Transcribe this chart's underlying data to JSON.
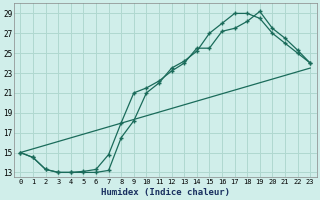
{
  "title": "",
  "xlabel": "Humidex (Indice chaleur)",
  "xlim": [
    -0.5,
    23.5
  ],
  "ylim": [
    12.5,
    30.0
  ],
  "xticks": [
    0,
    1,
    2,
    3,
    4,
    5,
    6,
    7,
    8,
    9,
    10,
    11,
    12,
    13,
    14,
    15,
    16,
    17,
    18,
    19,
    20,
    21,
    22,
    23
  ],
  "yticks": [
    13,
    15,
    17,
    19,
    21,
    23,
    25,
    27,
    29
  ],
  "background_color": "#d0eeea",
  "grid_color": "#b0d8d0",
  "line_color": "#1a6b5a",
  "line1_x": [
    0,
    1,
    2,
    3,
    4,
    5,
    6,
    7,
    8,
    9,
    10,
    11,
    12,
    13,
    14,
    15,
    16,
    17,
    18,
    19,
    20,
    21,
    22,
    23
  ],
  "line1_y": [
    15,
    14.5,
    13.3,
    13.0,
    13.0,
    13.0,
    13.0,
    13.2,
    16.5,
    18.2,
    21.0,
    22.0,
    23.5,
    24.2,
    25.2,
    27.0,
    28.0,
    29.0,
    29.0,
    28.5,
    27.0,
    26.0,
    25.0,
    24.0
  ],
  "line2_x": [
    0,
    1,
    2,
    3,
    4,
    5,
    6,
    7,
    8,
    9,
    10,
    11,
    12,
    13,
    14,
    15,
    16,
    17,
    18,
    19,
    20,
    21,
    22,
    23
  ],
  "line2_y": [
    15,
    14.5,
    13.3,
    13.0,
    13.0,
    13.1,
    13.3,
    14.8,
    18.0,
    21.0,
    21.5,
    22.2,
    23.2,
    24.0,
    25.5,
    25.5,
    27.2,
    27.5,
    28.2,
    29.2,
    27.5,
    26.5,
    25.3,
    24.0
  ],
  "line3_x": [
    0,
    23
  ],
  "line3_y": [
    15.0,
    23.5
  ]
}
